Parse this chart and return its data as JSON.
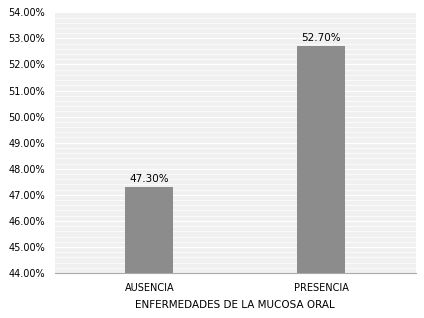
{
  "categories": [
    "AUSENCIA",
    "PRESENCIA"
  ],
  "values": [
    47.3,
    52.7
  ],
  "bar_color": "#8c8c8c",
  "bar_labels": [
    "47.30%",
    "52.70%"
  ],
  "xlabel": "ENFERMEDADES DE LA MUCOSA ORAL",
  "ylabel": "",
  "ylim": [
    44.0,
    54.0
  ],
  "yticks": [
    44.0,
    45.0,
    46.0,
    47.0,
    48.0,
    49.0,
    50.0,
    51.0,
    52.0,
    53.0,
    54.0
  ],
  "title": "",
  "bar_width": 0.28,
  "xlabel_fontsize": 7.5,
  "tick_fontsize": 7,
  "label_fontsize": 7.5,
  "background_color": "#ffffff",
  "plot_bg_color": "#f0f0f0",
  "grid_color": "#ffffff",
  "minor_grid_color": "#e8e8e8"
}
